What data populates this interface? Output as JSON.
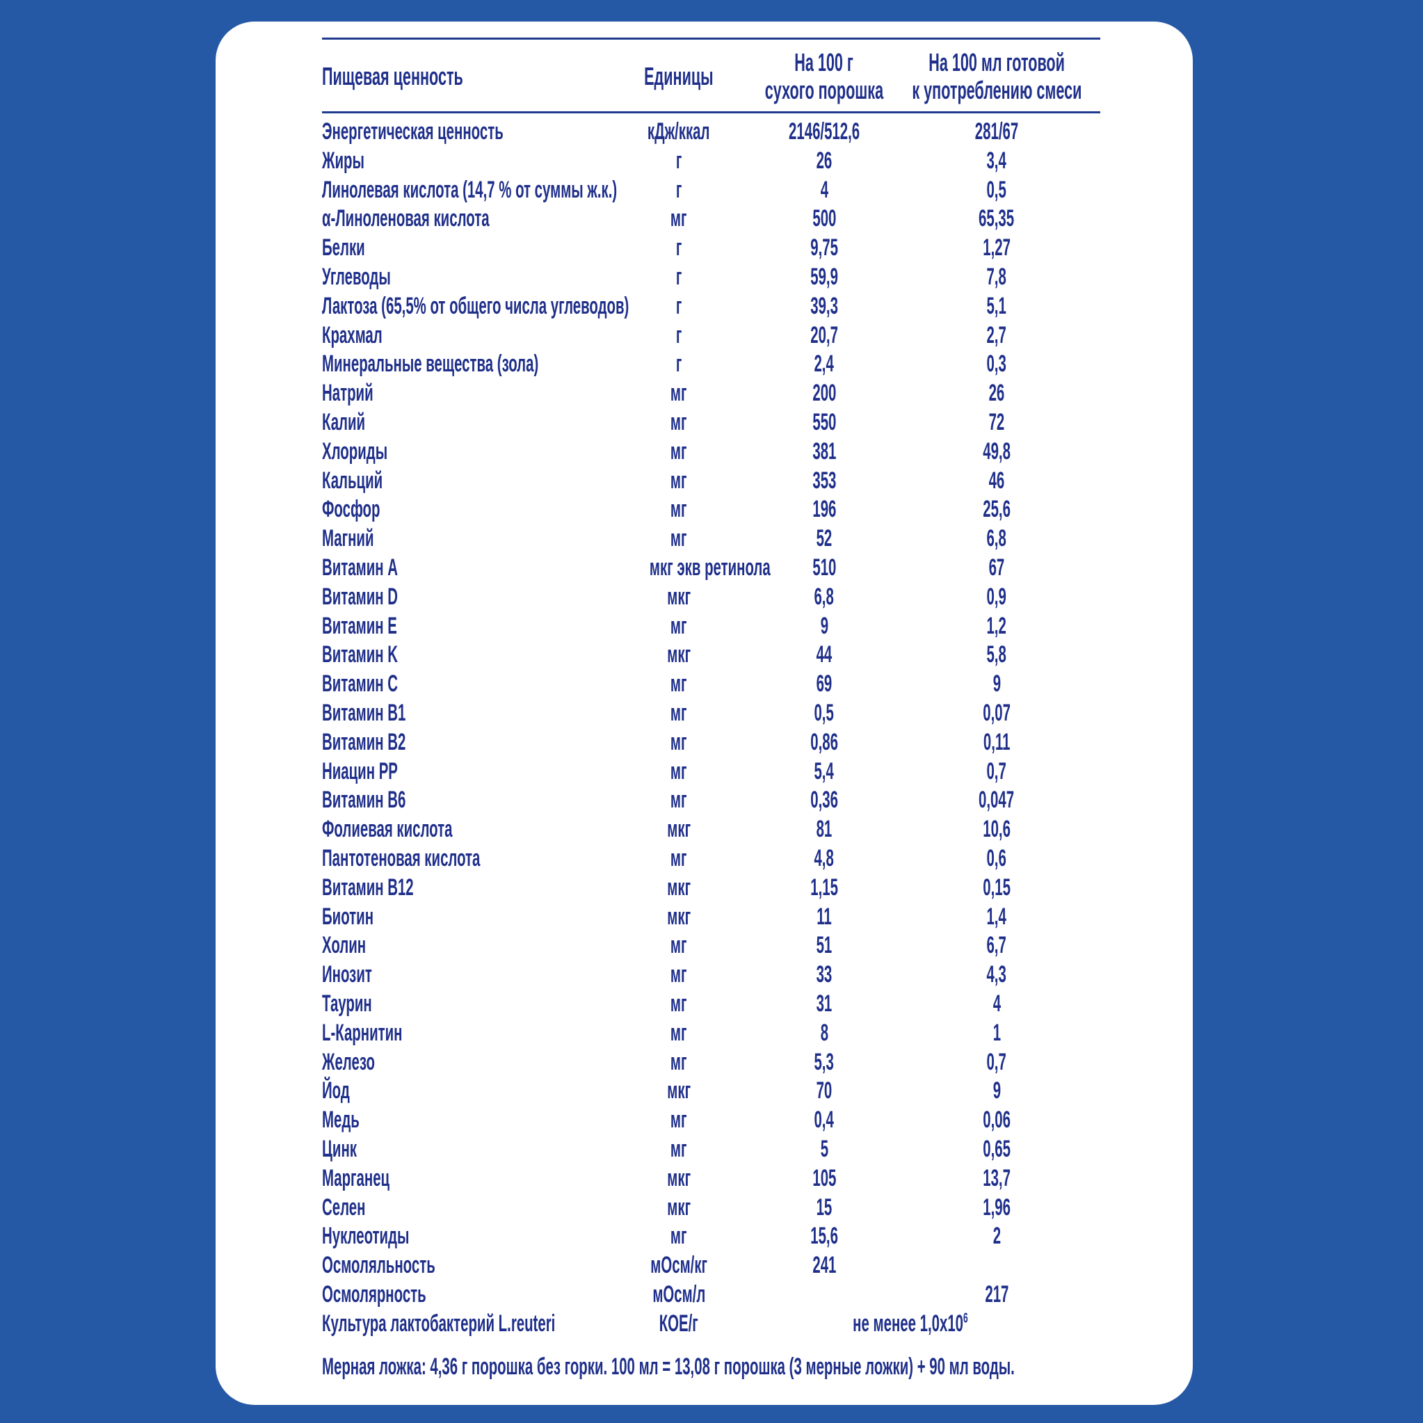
{
  "colors": {
    "background": "#2559a6",
    "text": "#1f2f8a",
    "card": "#ffffff"
  },
  "header": {
    "name": "Пищевая ценность",
    "unit": "Единицы",
    "dry_line1": "На 100 г",
    "dry_line2": "сухого порошка",
    "ready_line1": "На 100 мл готовой",
    "ready_line2": "к употреблению смеси"
  },
  "rows": [
    {
      "name": "Энергетическая ценность",
      "unit": "кДж/ккал",
      "dry": "2146/512,6",
      "ready": "281/67"
    },
    {
      "name": "Жиры",
      "unit": "г",
      "dry": "26",
      "ready": "3,4"
    },
    {
      "name": "Линолевая кислота (14,7 % от суммы ж.к.)",
      "unit": "г",
      "dry": "4",
      "ready": "0,5"
    },
    {
      "name": "α-Линоленовая кислота",
      "unit": "мг",
      "dry": "500",
      "ready": "65,35"
    },
    {
      "name": "Белки",
      "unit": "г",
      "dry": "9,75",
      "ready": "1,27"
    },
    {
      "name": "Углеводы",
      "unit": "г",
      "dry": "59,9",
      "ready": "7,8"
    },
    {
      "name": "Лактоза (65,5% от общего числа углеводов)",
      "unit": "г",
      "dry": "39,3",
      "ready": "5,1"
    },
    {
      "name": "Крахмал",
      "unit": "г",
      "dry": "20,7",
      "ready": "2,7"
    },
    {
      "name": "Минеральные вещества (зола)",
      "unit": "г",
      "dry": "2,4",
      "ready": "0,3"
    },
    {
      "name": "Натрий",
      "unit": "мг",
      "dry": "200",
      "ready": "26"
    },
    {
      "name": "Калий",
      "unit": "мг",
      "dry": "550",
      "ready": "72"
    },
    {
      "name": "Хлориды",
      "unit": "мг",
      "dry": "381",
      "ready": "49,8"
    },
    {
      "name": "Кальций",
      "unit": "мг",
      "dry": "353",
      "ready": "46"
    },
    {
      "name": "Фосфор",
      "unit": "мг",
      "dry": "196",
      "ready": "25,6"
    },
    {
      "name": "Магний",
      "unit": "мг",
      "dry": "52",
      "ready": "6,8"
    },
    {
      "name": "Витамин A",
      "unit": "мкг экв ретинола",
      "dry": "510",
      "ready": "67"
    },
    {
      "name": "Витамин D",
      "unit": "мкг",
      "dry": "6,8",
      "ready": "0,9"
    },
    {
      "name": "Витамин E",
      "unit": "мг",
      "dry": "9",
      "ready": "1,2"
    },
    {
      "name": "Витамин K",
      "unit": "мкг",
      "dry": "44",
      "ready": "5,8"
    },
    {
      "name": "Витамин C",
      "unit": "мг",
      "dry": "69",
      "ready": "9"
    },
    {
      "name": "Витамин B1",
      "unit": "мг",
      "dry": "0,5",
      "ready": "0,07"
    },
    {
      "name": "Витамин B2",
      "unit": "мг",
      "dry": "0,86",
      "ready": "0,11"
    },
    {
      "name": "Ниацин PP",
      "unit": "мг",
      "dry": "5,4",
      "ready": "0,7"
    },
    {
      "name": "Витамин B6",
      "unit": "мг",
      "dry": "0,36",
      "ready": "0,047"
    },
    {
      "name": "Фолиевая кислота",
      "unit": "мкг",
      "dry": "81",
      "ready": "10,6"
    },
    {
      "name": "Пантотеновая кислота",
      "unit": "мг",
      "dry": "4,8",
      "ready": "0,6"
    },
    {
      "name": "Витамин B12",
      "unit": "мкг",
      "dry": "1,15",
      "ready": "0,15"
    },
    {
      "name": "Биотин",
      "unit": "мкг",
      "dry": "11",
      "ready": "1,4"
    },
    {
      "name": "Холин",
      "unit": "мг",
      "dry": "51",
      "ready": "6,7"
    },
    {
      "name": "Инозит",
      "unit": "мг",
      "dry": "33",
      "ready": "4,3"
    },
    {
      "name": "Таурин",
      "unit": "мг",
      "dry": "31",
      "ready": "4"
    },
    {
      "name": "L-Карнитин",
      "unit": "мг",
      "dry": "8",
      "ready": "1"
    },
    {
      "name": "Железо",
      "unit": "мг",
      "dry": "5,3",
      "ready": "0,7"
    },
    {
      "name": "Йод",
      "unit": "мкг",
      "dry": "70",
      "ready": "9"
    },
    {
      "name": "Медь",
      "unit": "мг",
      "dry": "0,4",
      "ready": "0,06"
    },
    {
      "name": "Цинк",
      "unit": "мг",
      "dry": "5",
      "ready": "0,65"
    },
    {
      "name": "Марганец",
      "unit": "мкг",
      "dry": "105",
      "ready": "13,7"
    },
    {
      "name": "Селен",
      "unit": "мкг",
      "dry": "15",
      "ready": "1,96"
    },
    {
      "name": "Нуклеотиды",
      "unit": "мг",
      "dry": "15,6",
      "ready": "2"
    },
    {
      "name": "Осмоляльность",
      "unit": "мОсм/кг",
      "dry": "241",
      "ready": ""
    },
    {
      "name": "Осмолярность",
      "unit": "мОсм/л",
      "dry": "",
      "ready": "217"
    },
    {
      "name": "Культура лактобактерий L.reuteri",
      "unit": "КОЕ/г",
      "span": "не менее 1,0x10",
      "span_sup": "6"
    }
  ],
  "footnote": "Мерная ложка: 4,36 г порошка без горки. 100 мл = 13,08 г порошка (3 мерные ложки) + 90 мл воды."
}
